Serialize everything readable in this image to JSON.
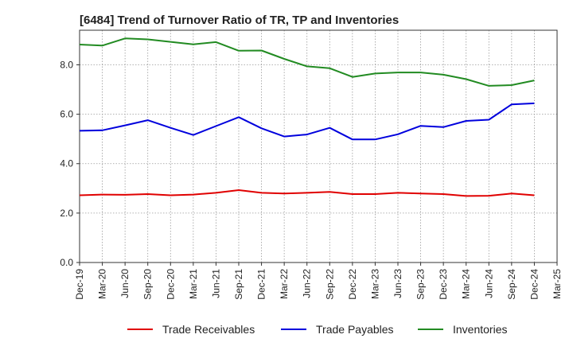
{
  "chart_data": {
    "type": "line",
    "title": "[6484]  Trend of Turnover Ratio of TR, TP and Inventories",
    "xlabel": "",
    "ylabel": "",
    "ylim": [
      0,
      9.4
    ],
    "yticks": [
      "0.0",
      "2.0",
      "4.0",
      "6.0",
      "8.0"
    ],
    "ytick_values": [
      0,
      2,
      4,
      6,
      8
    ],
    "grid": true,
    "legend_position": "bottom",
    "categories": [
      "Dec-19",
      "Mar-20",
      "Jun-20",
      "Sep-20",
      "Dec-20",
      "Mar-21",
      "Jun-21",
      "Sep-21",
      "Dec-21",
      "Mar-22",
      "Jun-22",
      "Sep-22",
      "Dec-22",
      "Mar-23",
      "Jun-23",
      "Sep-23",
      "Dec-23",
      "Mar-24",
      "Jun-24",
      "Sep-24",
      "Dec-24",
      "Mar-25"
    ],
    "series": [
      {
        "name": "Trade Receivables",
        "color": "#e00000",
        "values": [
          2.72,
          2.75,
          2.74,
          2.77,
          2.72,
          2.75,
          2.82,
          2.93,
          2.82,
          2.79,
          2.82,
          2.86,
          2.77,
          2.77,
          2.82,
          2.79,
          2.77,
          2.69,
          2.7,
          2.79,
          2.72,
          null
        ]
      },
      {
        "name": "Trade Payables",
        "color": "#0000dd",
        "values": [
          5.33,
          5.35,
          5.55,
          5.76,
          5.45,
          5.16,
          5.52,
          5.88,
          5.43,
          5.1,
          5.18,
          5.45,
          4.98,
          4.98,
          5.19,
          5.53,
          5.48,
          5.73,
          5.78,
          6.4,
          6.44,
          null
        ]
      },
      {
        "name": "Inventories",
        "color": "#228b22",
        "values": [
          8.82,
          8.78,
          9.07,
          9.03,
          8.93,
          8.83,
          8.92,
          8.57,
          8.58,
          8.24,
          7.94,
          7.86,
          7.51,
          7.65,
          7.69,
          7.69,
          7.6,
          7.42,
          7.15,
          7.18,
          7.37,
          null
        ]
      }
    ]
  }
}
